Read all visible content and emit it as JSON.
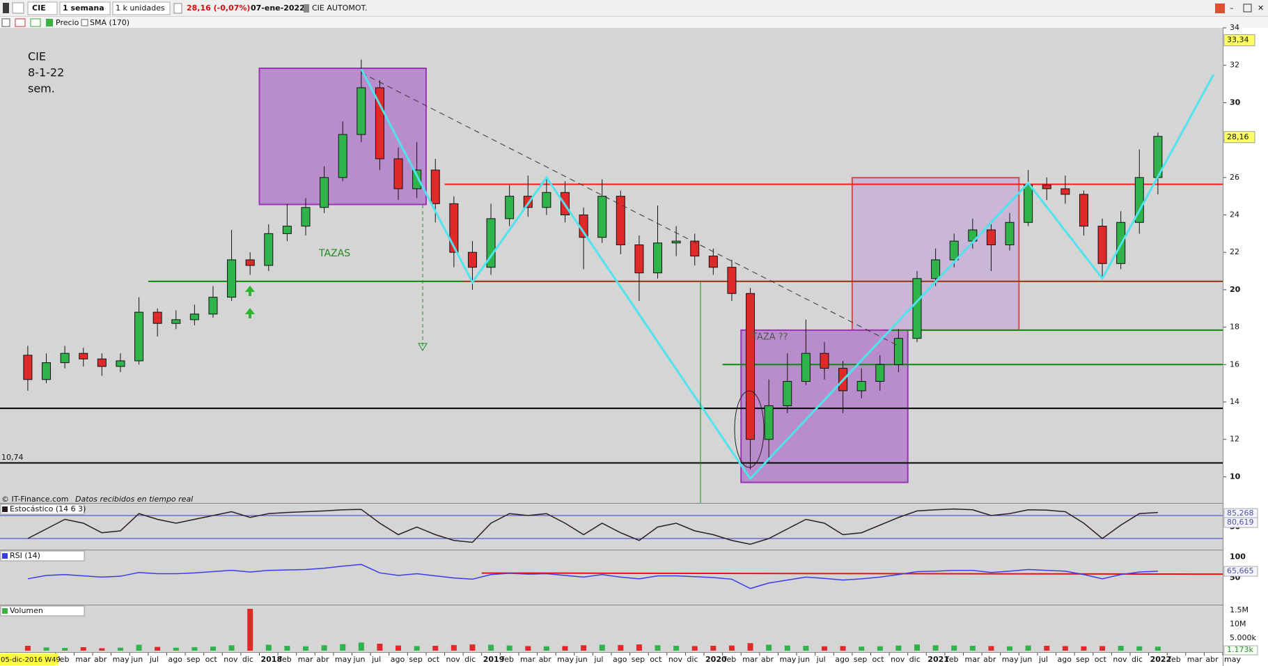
{
  "toolbar": {
    "symbol": "CIE",
    "period": "1 semana",
    "units": "1 k unidades",
    "quote": "28,16 (-0,07%)",
    "date": "07-ene-2022",
    "name": "CIE AUTOMOT.",
    "indicators": [
      "Precio",
      "SMA (170)"
    ]
  },
  "annotations": {
    "note": [
      "CIE",
      "8-1-22",
      "sem."
    ],
    "tazas": "TAZAS",
    "taza": "TAZA ??",
    "level_label": "10,74"
  },
  "footer": {
    "source": "© IT-Finance.com",
    "status": "Datos recibidos en tiempo real"
  },
  "chart_data": [
    {
      "type": "candlestick",
      "x": [
        "2016-12",
        "2017-01",
        "2017-02",
        "2017-03",
        "2017-04",
        "2017-05",
        "2017-06",
        "2017-07",
        "2017-08",
        "2017-09",
        "2017-10",
        "2017-11",
        "2017-12",
        "2018-01",
        "2018-02",
        "2018-03",
        "2018-04",
        "2018-05",
        "2018-06",
        "2018-07",
        "2018-08",
        "2018-09",
        "2018-10",
        "2018-11",
        "2018-12",
        "2019-01",
        "2019-02",
        "2019-03",
        "2019-04",
        "2019-05",
        "2019-06",
        "2019-07",
        "2019-08",
        "2019-09",
        "2019-10",
        "2019-11",
        "2019-12",
        "2020-01",
        "2020-02",
        "2020-03",
        "2020-04",
        "2020-05",
        "2020-06",
        "2020-07",
        "2020-08",
        "2020-09",
        "2020-10",
        "2020-11",
        "2020-12",
        "2021-01",
        "2021-02",
        "2021-03",
        "2021-04",
        "2021-05",
        "2021-06",
        "2021-07",
        "2021-08",
        "2021-09",
        "2021-10",
        "2021-11",
        "2021-12",
        "2022-01"
      ],
      "ohlc": [
        [
          16.5,
          17.0,
          14.6,
          15.2
        ],
        [
          15.2,
          16.6,
          15.0,
          16.1
        ],
        [
          16.1,
          17.0,
          15.8,
          16.6
        ],
        [
          16.6,
          16.9,
          15.9,
          16.3
        ],
        [
          16.3,
          16.6,
          15.4,
          15.9
        ],
        [
          15.9,
          16.6,
          15.6,
          16.2
        ],
        [
          16.2,
          19.6,
          16.0,
          18.8
        ],
        [
          18.8,
          19.0,
          17.5,
          18.2
        ],
        [
          18.2,
          18.9,
          17.9,
          18.4
        ],
        [
          18.4,
          19.2,
          18.1,
          18.7
        ],
        [
          18.7,
          20.2,
          18.5,
          19.6
        ],
        [
          19.6,
          23.2,
          19.4,
          21.6
        ],
        [
          21.6,
          22.0,
          20.8,
          21.3
        ],
        [
          21.3,
          23.5,
          21.0,
          23.0
        ],
        [
          23.0,
          24.6,
          22.6,
          23.4
        ],
        [
          23.4,
          24.9,
          22.9,
          24.4
        ],
        [
          24.4,
          26.6,
          24.1,
          26.0
        ],
        [
          26.0,
          29.0,
          25.8,
          28.3
        ],
        [
          28.3,
          32.3,
          27.9,
          30.8
        ],
        [
          30.8,
          31.2,
          26.4,
          27.0
        ],
        [
          27.0,
          27.6,
          24.8,
          25.4
        ],
        [
          25.4,
          27.9,
          24.9,
          26.4
        ],
        [
          26.4,
          27.0,
          23.6,
          24.6
        ],
        [
          24.6,
          25.0,
          21.2,
          22.0
        ],
        [
          22.0,
          22.6,
          20.0,
          21.2
        ],
        [
          21.2,
          24.6,
          20.8,
          23.8
        ],
        [
          23.8,
          25.6,
          23.4,
          25.0
        ],
        [
          25.0,
          26.1,
          23.9,
          24.4
        ],
        [
          24.4,
          25.9,
          24.0,
          25.2
        ],
        [
          25.2,
          25.8,
          23.6,
          24.0
        ],
        [
          24.0,
          24.4,
          21.1,
          22.8
        ],
        [
          22.8,
          25.9,
          22.5,
          25.0
        ],
        [
          25.0,
          25.3,
          21.9,
          22.4
        ],
        [
          22.4,
          22.9,
          19.4,
          20.9
        ],
        [
          20.9,
          24.5,
          20.6,
          22.5
        ],
        [
          22.5,
          23.4,
          21.8,
          22.6
        ],
        [
          22.6,
          23.0,
          21.3,
          21.8
        ],
        [
          21.8,
          22.2,
          20.8,
          21.2
        ],
        [
          21.2,
          21.6,
          19.4,
          19.8
        ],
        [
          19.8,
          20.1,
          10.4,
          12.0
        ],
        [
          12.0,
          15.2,
          10.8,
          13.8
        ],
        [
          13.8,
          16.6,
          13.4,
          15.1
        ],
        [
          15.1,
          18.4,
          14.9,
          16.6
        ],
        [
          16.6,
          17.2,
          15.2,
          15.8
        ],
        [
          15.8,
          16.2,
          13.4,
          14.6
        ],
        [
          14.6,
          15.8,
          14.2,
          15.1
        ],
        [
          15.1,
          16.5,
          14.6,
          16.0
        ],
        [
          16.0,
          17.9,
          15.6,
          17.4
        ],
        [
          17.4,
          21.0,
          17.2,
          20.6
        ],
        [
          20.6,
          22.2,
          20.2,
          21.6
        ],
        [
          21.6,
          23.0,
          21.2,
          22.6
        ],
        [
          22.6,
          23.8,
          22.2,
          23.2
        ],
        [
          23.2,
          23.5,
          21.0,
          22.4
        ],
        [
          22.4,
          24.1,
          22.1,
          23.6
        ],
        [
          23.6,
          26.4,
          23.4,
          25.6
        ],
        [
          25.6,
          26.0,
          24.8,
          25.4
        ],
        [
          25.4,
          26.1,
          24.6,
          25.1
        ],
        [
          25.1,
          25.3,
          22.9,
          23.4
        ],
        [
          23.4,
          23.8,
          20.7,
          21.4
        ],
        [
          21.4,
          24.2,
          21.1,
          23.6
        ],
        [
          23.6,
          27.5,
          23.0,
          26.0
        ],
        [
          26.0,
          28.4,
          25.1,
          28.2
        ]
      ],
      "up_color": "#2fb34a",
      "down_color": "#e02a2a",
      "xlim": [
        "2016-11",
        "2022-05"
      ],
      "x_start_label": "05-dic-2016 W49",
      "xticks": [
        {
          "value": "2017-02",
          "label": "feb"
        },
        {
          "value": "2017-03",
          "label": "mar"
        },
        {
          "value": "2017-04",
          "label": "abr"
        },
        {
          "value": "2017-05",
          "label": "may"
        },
        {
          "value": "2017-06",
          "label": "jun"
        },
        {
          "value": "2017-07",
          "label": "jul"
        },
        {
          "value": "2017-08",
          "label": "ago"
        },
        {
          "value": "2017-09",
          "label": "sep"
        },
        {
          "value": "2017-10",
          "label": "oct"
        },
        {
          "value": "2017-11",
          "label": "nov"
        },
        {
          "value": "2017-12",
          "label": "dic"
        },
        {
          "value": "2018-01",
          "label": "2018"
        },
        {
          "value": "2018-02",
          "label": "feb"
        },
        {
          "value": "2018-03",
          "label": "mar"
        },
        {
          "value": "2018-04",
          "label": "abr"
        },
        {
          "value": "2018-05",
          "label": "may"
        },
        {
          "value": "2018-06",
          "label": "jun"
        },
        {
          "value": "2018-07",
          "label": "jul"
        },
        {
          "value": "2018-08",
          "label": "ago"
        },
        {
          "value": "2018-09",
          "label": "sep"
        },
        {
          "value": "2018-10",
          "label": "oct"
        },
        {
          "value": "2018-11",
          "label": "nov"
        },
        {
          "value": "2018-12",
          "label": "dic"
        },
        {
          "value": "2019-01",
          "label": "2019"
        },
        {
          "value": "2019-02",
          "label": "feb"
        },
        {
          "value": "2019-03",
          "label": "mar"
        },
        {
          "value": "2019-04",
          "label": "abr"
        },
        {
          "value": "2019-05",
          "label": "may"
        },
        {
          "value": "2019-06",
          "label": "jun"
        },
        {
          "value": "2019-07",
          "label": "jul"
        },
        {
          "value": "2019-08",
          "label": "ago"
        },
        {
          "value": "2019-09",
          "label": "sep"
        },
        {
          "value": "2019-10",
          "label": "oct"
        },
        {
          "value": "2019-11",
          "label": "nov"
        },
        {
          "value": "2019-12",
          "label": "dic"
        },
        {
          "value": "2020-01",
          "label": "2020"
        },
        {
          "value": "2020-02",
          "label": "feb"
        },
        {
          "value": "2020-03",
          "label": "mar"
        },
        {
          "value": "2020-04",
          "label": "abr"
        },
        {
          "value": "2020-05",
          "label": "may"
        },
        {
          "value": "2020-06",
          "label": "jun"
        },
        {
          "value": "2020-07",
          "label": "jul"
        },
        {
          "value": "2020-08",
          "label": "ago"
        },
        {
          "value": "2020-09",
          "label": "sep"
        },
        {
          "value": "2020-10",
          "label": "oct"
        },
        {
          "value": "2020-11",
          "label": "nov"
        },
        {
          "value": "2020-12",
          "label": "dic"
        },
        {
          "value": "2021-01",
          "label": "2021"
        },
        {
          "value": "2021-02",
          "label": "feb"
        },
        {
          "value": "2021-03",
          "label": "mar"
        },
        {
          "value": "2021-04",
          "label": "abr"
        },
        {
          "value": "2021-05",
          "label": "may"
        },
        {
          "value": "2021-06",
          "label": "jun"
        },
        {
          "value": "2021-07",
          "label": "jul"
        },
        {
          "value": "2021-08",
          "label": "ago"
        },
        {
          "value": "2021-09",
          "label": "sep"
        },
        {
          "value": "2021-10",
          "label": "oct"
        },
        {
          "value": "2021-11",
          "label": "nov"
        },
        {
          "value": "2021-12",
          "label": "dic"
        },
        {
          "value": "2022-01",
          "label": "2022"
        },
        {
          "value": "2022-02",
          "label": "feb"
        },
        {
          "value": "2022-03",
          "label": "mar"
        },
        {
          "value": "2022-04",
          "label": "abr"
        },
        {
          "value": "2022-05",
          "label": "may"
        }
      ],
      "ylim": [
        8.6,
        34.0
      ],
      "yticks": [
        10,
        12,
        14,
        16,
        18,
        20,
        22,
        24,
        26,
        28,
        30,
        32,
        34
      ],
      "price_labels": [
        {
          "value": 33.34,
          "label": "33,34"
        },
        {
          "value": 28.16,
          "label": "28,16"
        }
      ],
      "levels": [
        {
          "value": 25.64,
          "from": "2018-11",
          "color": "#ff1a1a"
        },
        {
          "value": 20.45,
          "from": "2017-07",
          "color": "#0a8a0a"
        },
        {
          "value": 20.45,
          "from": "2018-12",
          "color": "#a83a22"
        },
        {
          "value": 17.84,
          "from": "2020-11",
          "color": "#0a8a0a"
        },
        {
          "value": 16.0,
          "from": "2020-02",
          "color": "#0a8a0a"
        },
        {
          "value": 13.66,
          "color": "#000000"
        },
        {
          "value": 10.74,
          "color": "#000000"
        }
      ],
      "boxes": [
        {
          "x": [
            "2020-09",
            "2021-06"
          ],
          "y": [
            17.84,
            25.99
          ],
          "fill": "#c7aed6",
          "stroke": "#e04848"
        },
        {
          "x": [
            "2018-01",
            "2018-10"
          ],
          "y": [
            24.56,
            31.84
          ],
          "fill": "#b27bc8",
          "stroke": "#9a34b4"
        },
        {
          "x": [
            "2020-03",
            "2020-12"
          ],
          "y": [
            9.7,
            17.84
          ],
          "fill": "#b27bc8",
          "stroke": "#9a34b4"
        }
      ],
      "zigzag": {
        "color": "#4fe3ee",
        "x": [
          "2018-06",
          "2018-12",
          "2019-04",
          "2020-03",
          "2021-06",
          "2021-10",
          "2022-04"
        ],
        "y": [
          31.8,
          20.4,
          26.0,
          9.9,
          25.7,
          20.6,
          31.5
        ]
      },
      "trendline": {
        "color": "#333333",
        "x": [
          "2018-06",
          "2020-11"
        ],
        "y": [
          31.6,
          17.0
        ]
      }
    },
    {
      "type": "line",
      "title": "Estocástico (14 6 3)",
      "color": "#2a1d1d",
      "values": [
        20,
        45,
        70,
        60,
        35,
        40,
        85,
        70,
        60,
        70,
        80,
        90,
        75,
        85,
        88,
        90,
        92,
        95,
        96,
        60,
        30,
        50,
        30,
        15,
        10,
        60,
        85,
        80,
        85,
        60,
        30,
        60,
        35,
        15,
        50,
        60,
        40,
        30,
        15,
        5,
        20,
        45,
        70,
        60,
        30,
        35,
        55,
        75,
        92,
        95,
        97,
        95,
        80,
        85,
        95,
        94,
        90,
        60,
        20,
        55,
        85,
        88
      ],
      "ylim": [
        0,
        100
      ],
      "yticks": [
        50
      ],
      "levels": [
        80,
        20
      ],
      "level_color": "#3a3ad0",
      "last_labels": [
        {
          "value": 85.268,
          "label": "85,268"
        },
        {
          "value": 80.619,
          "label": "80,619"
        }
      ]
    },
    {
      "type": "line",
      "title": "RSI (14)",
      "color": "#3b3bef",
      "values": [
        48,
        56,
        58,
        55,
        52,
        54,
        63,
        60,
        60,
        62,
        65,
        68,
        64,
        68,
        69,
        70,
        73,
        78,
        82,
        62,
        56,
        60,
        55,
        50,
        47,
        58,
        61,
        59,
        60,
        56,
        52,
        58,
        52,
        48,
        55,
        55,
        53,
        51,
        47,
        25,
        38,
        45,
        52,
        49,
        45,
        48,
        52,
        58,
        65,
        66,
        68,
        68,
        63,
        66,
        70,
        68,
        66,
        58,
        48,
        58,
        64,
        66
      ],
      "ylim": [
        -10,
        112
      ],
      "yticks": [
        100,
        50
      ],
      "last_labels": [
        {
          "value": 65.665,
          "label": "65,665"
        }
      ],
      "trendline": {
        "color": "#ee1111",
        "x": [
          "2019-01",
          "2022-05"
        ],
        "y": [
          61.6,
          59.0
        ]
      }
    },
    {
      "type": "bar",
      "title": "Volumen",
      "values": [
        1800,
        1200,
        1000,
        1300,
        900,
        1100,
        2200,
        1400,
        1100,
        1300,
        1500,
        2000,
        15500,
        2200,
        1800,
        1600,
        2000,
        2400,
        3000,
        2600,
        1900,
        1700,
        1800,
        2100,
        2300,
        2200,
        1900,
        1700,
        1600,
        1700,
        2000,
        2200,
        2100,
        2300,
        2000,
        1800,
        1700,
        1800,
        1900,
        2800,
        2200,
        1900,
        1800,
        1600,
        1700,
        1500,
        1600,
        1900,
        2300,
        2000,
        1900,
        1800,
        1700,
        1600,
        1900,
        1800,
        1700,
        1600,
        1700,
        1800,
        1600,
        1500
      ],
      "ylim": [
        0,
        16000
      ],
      "axis_labels": [
        "1.5M",
        "10M",
        "5.000k"
      ],
      "last_label": "1.173k"
    }
  ]
}
